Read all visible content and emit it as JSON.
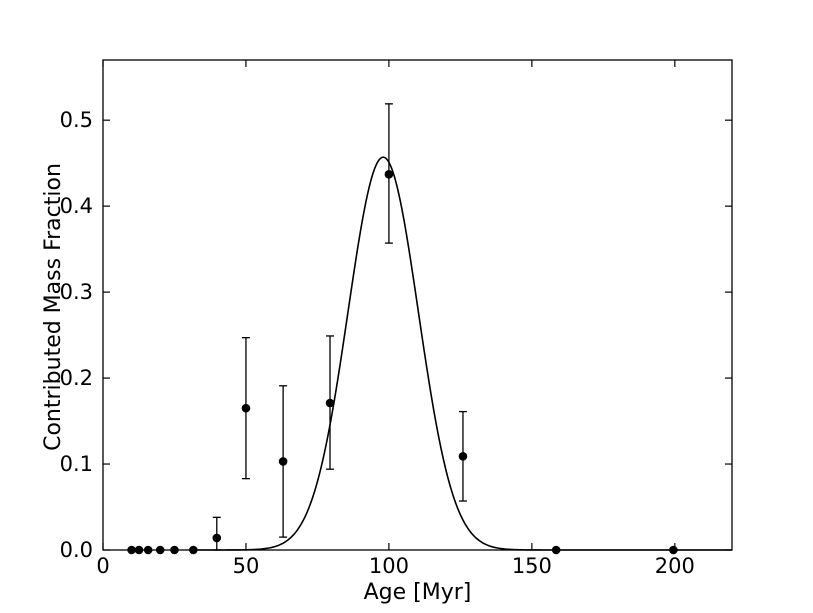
{
  "chart_data": {
    "type": "scatter",
    "title": "",
    "xlabel": "Age [Myr]",
    "ylabel": "Contributed Mass Fraction",
    "xlim": [
      0,
      220
    ],
    "ylim": [
      0,
      0.57
    ],
    "x_ticks": [
      0,
      50,
      100,
      150,
      200
    ],
    "x_tick_labels": [
      "0",
      "50",
      "100",
      "150",
      "200"
    ],
    "y_ticks": [
      0,
      0.1,
      0.2,
      0.3,
      0.4,
      0.5
    ],
    "y_tick_labels": [
      "0.0",
      "0.1",
      "0.2",
      "0.3",
      "0.4",
      "0.5"
    ],
    "grid": false,
    "points": [
      {
        "x": 10,
        "y": 0.0
      },
      {
        "x": 12.6,
        "y": 0.0
      },
      {
        "x": 15.8,
        "y": 0.0
      },
      {
        "x": 20,
        "y": 0.0
      },
      {
        "x": 25,
        "y": 0.0
      },
      {
        "x": 31.6,
        "y": 0.0
      },
      {
        "x": 39.8,
        "y": 0.014,
        "err_low": 0.014,
        "err_high": 0.024
      },
      {
        "x": 50,
        "y": 0.165,
        "err_low": 0.082,
        "err_high": 0.082
      },
      {
        "x": 63,
        "y": 0.103,
        "err_low": 0.088,
        "err_high": 0.088
      },
      {
        "x": 79.4,
        "y": 0.171,
        "err_low": 0.077,
        "err_high": 0.078
      },
      {
        "x": 100,
        "y": 0.437,
        "err_low": 0.08,
        "err_high": 0.082
      },
      {
        "x": 125.9,
        "y": 0.109,
        "err_low": 0.052,
        "err_high": 0.052
      },
      {
        "x": 158.5,
        "y": 0.0
      },
      {
        "x": 199.5,
        "y": 0.0
      }
    ],
    "fit_curve": {
      "type": "gaussian",
      "amplitude": 0.457,
      "mean": 98,
      "sigma": 12.3
    },
    "colors": {
      "points": "#000000",
      "curve": "#000000",
      "axes": "#000000"
    }
  }
}
